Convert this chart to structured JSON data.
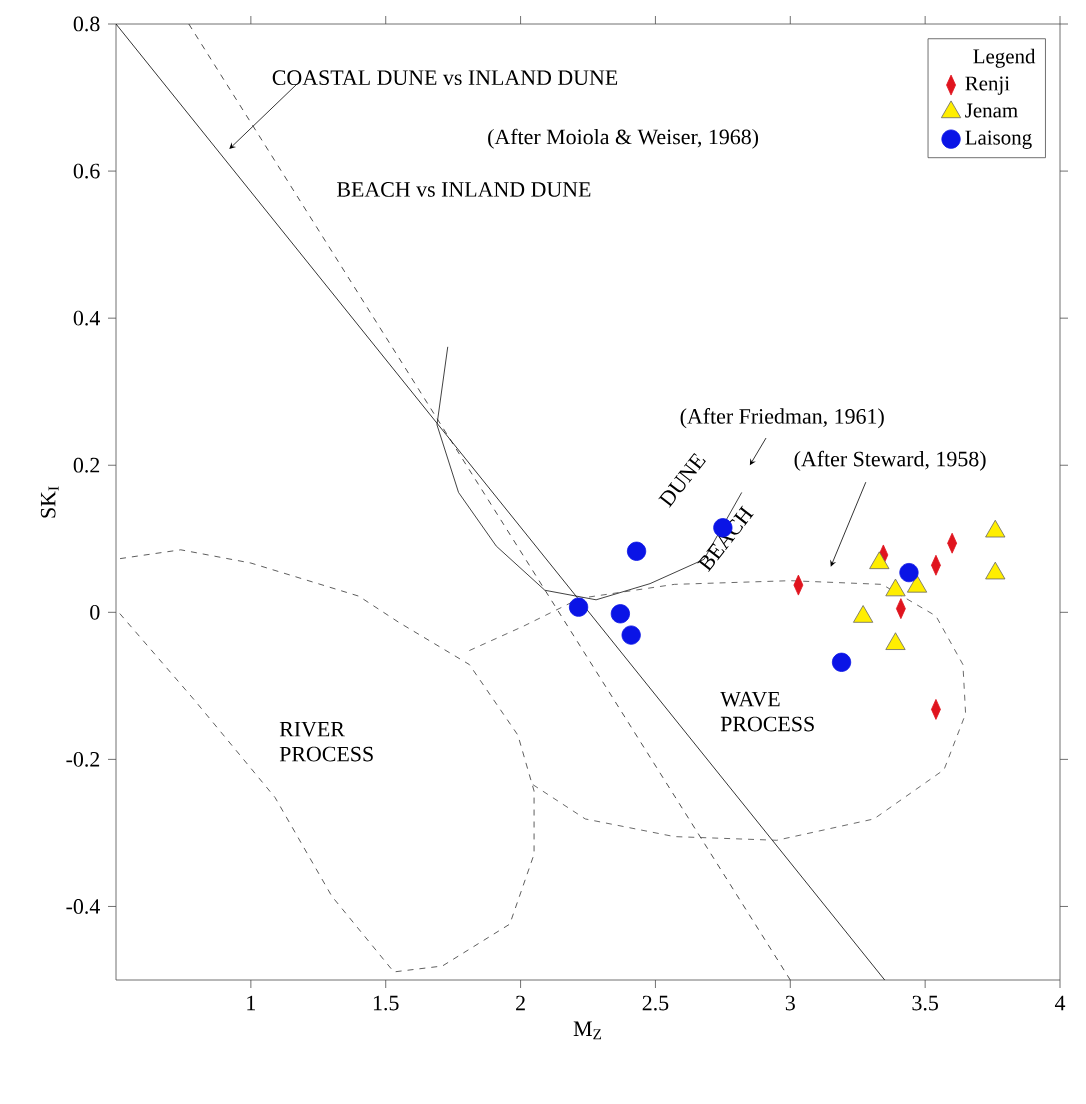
{
  "chart_data": {
    "type": "scatter",
    "xlabel": "M$_{Z}$",
    "ylabel": "SK$_{I}$",
    "legend_title": "Legend",
    "legend": "top right",
    "xlim": [
      0.5,
      4
    ],
    "ylim": [
      -0.5,
      0.8
    ],
    "xticks": [
      1,
      1.5,
      2,
      2.5,
      3,
      3.5,
      4
    ],
    "yticks": [
      -0.4,
      -0.2,
      0,
      0.2,
      0.4,
      0.6,
      0.8
    ],
    "series": [
      {
        "name": "Renji",
        "color": "#e0141e",
        "marker": "diamond",
        "x": [
          3.03,
          3.345,
          3.41,
          3.54,
          3.6,
          3.54
        ],
        "values": [
          0.037,
          0.078,
          0.005,
          0.064,
          0.094,
          -0.132
        ]
      },
      {
        "name": "Jenam",
        "color": "#ffee00",
        "marker": "triangle",
        "x": [
          3.76,
          3.76,
          3.33,
          3.39,
          3.47,
          3.27,
          3.39
        ],
        "values": [
          0.11,
          0.053,
          0.067,
          0.03,
          0.035,
          -0.006,
          -0.043
        ]
      },
      {
        "name": "Laisong",
        "color": "#0a14e6",
        "marker": "circle",
        "x": [
          2.215,
          2.37,
          2.41,
          3.19,
          3.44,
          2.43,
          2.75
        ],
        "values": [
          0.007,
          -0.002,
          -0.031,
          -0.068,
          0.054,
          0.083,
          0.115
        ]
      },
      {
        "type": "line",
        "color": "#000000",
        "line_style": "solid",
        "marker": "none",
        "x": [
          0.5,
          3.35
        ],
        "values": [
          0.8,
          -0.5
        ]
      },
      {
        "type": "line",
        "color": "#222222",
        "line_style": "dashed",
        "marker": "none",
        "x": [
          0.77,
          3.0
        ],
        "values": [
          0.8,
          -0.5
        ]
      },
      {
        "type": "line",
        "color": "#111111",
        "line_style": "solid",
        "marker": "none",
        "x": [
          1.73,
          1.69,
          1.77,
          1.91,
          2.09,
          2.28,
          2.48,
          2.68,
          2.82
        ],
        "values": [
          0.361,
          0.255,
          0.163,
          0.09,
          0.03,
          0.017,
          0.039,
          0.072,
          0.163
        ]
      },
      {
        "type": "line",
        "color": "#333333",
        "line_style": "dashed",
        "marker": "none",
        "x": [
          0.515,
          0.74,
          1.0,
          1.4,
          1.55,
          1.81,
          1.99,
          2.05,
          2.05,
          1.96,
          1.71,
          1.53,
          1.3,
          1.09,
          0.79,
          0.51
        ],
        "values": [
          0.073,
          0.085,
          0.067,
          0.022,
          -0.014,
          -0.071,
          -0.167,
          -0.243,
          -0.329,
          -0.424,
          -0.481,
          -0.489,
          -0.386,
          -0.252,
          -0.119,
          0.0
        ]
      },
      {
        "type": "line",
        "color": "#444444",
        "line_style": "dashed",
        "marker": "none",
        "x": [
          1.81,
          2.01,
          2.22,
          2.57,
          3.0,
          3.34,
          3.54,
          3.64,
          3.65,
          3.57,
          3.31,
          2.95,
          2.57,
          2.24,
          2.04
        ],
        "values": [
          -0.052,
          -0.019,
          0.019,
          0.038,
          0.043,
          0.038,
          -0.005,
          -0.071,
          -0.138,
          -0.214,
          -0.281,
          -0.31,
          -0.305,
          -0.281,
          -0.233
        ]
      }
    ],
    "annotations": [
      "COASTAL DUNE vs INLAND DUNE",
      "(After Moiola & Weiser, 1968)",
      "BEACH vs INLAND DUNE",
      "(After Friedman, 1961)",
      "(After Steward, 1958)",
      "DUNE",
      "BEACH",
      "RIVER PROCESS",
      "WAVE PROCESS"
    ]
  }
}
